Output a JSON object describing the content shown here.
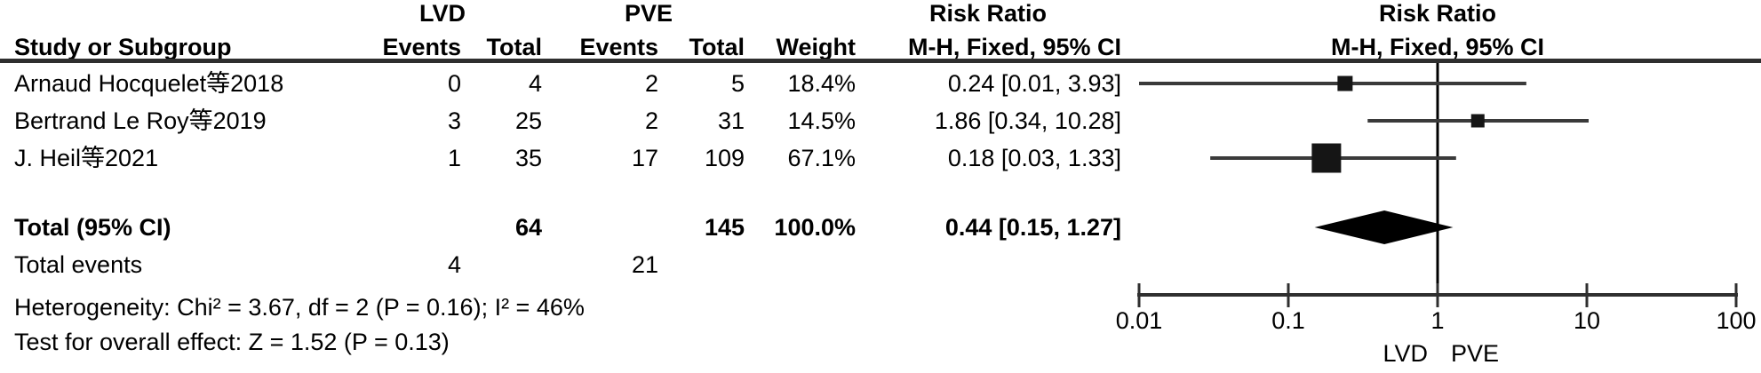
{
  "table": {
    "group1_label": "LVD",
    "group2_label": "PVE",
    "col_study": "Study or Subgroup",
    "col_events": "Events",
    "col_total": "Total",
    "col_weight": "Weight",
    "rr_header_line1": "Risk Ratio",
    "rr_header_line2": "M-H, Fixed, 95% CI",
    "plot_header_line1": "Risk Ratio",
    "plot_header_line2": "M-H, Fixed, 95% CI",
    "studies": [
      {
        "name": "Arnaud Hocquelet等2018",
        "lvd_events": "0",
        "lvd_total": "4",
        "pve_events": "2",
        "pve_total": "5",
        "weight": "18.4%",
        "rr_ci": "0.24 [0.01, 3.93]"
      },
      {
        "name": "Bertrand Le Roy等2019",
        "lvd_events": "3",
        "lvd_total": "25",
        "pve_events": "2",
        "pve_total": "31",
        "weight": "14.5%",
        "rr_ci": "1.86 [0.34, 10.28]"
      },
      {
        "name": "J. Heil等2021",
        "lvd_events": "1",
        "lvd_total": "35",
        "pve_events": "17",
        "pve_total": "109",
        "weight": "67.1%",
        "rr_ci": "0.18 [0.03, 1.33]"
      }
    ],
    "total": {
      "label": "Total (95% CI)",
      "lvd_total": "64",
      "pve_total": "145",
      "weight": "100.0%",
      "rr_ci": "0.44 [0.15, 1.27]"
    },
    "total_events": {
      "label": "Total events",
      "lvd": "4",
      "pve": "21"
    },
    "heterogeneity": "Heterogeneity: Chi² = 3.67, df = 2 (P = 0.16); I² = 46%",
    "overall_effect": "Test for overall effect: Z = 1.52 (P = 0.13)"
  },
  "chart_data": {
    "type": "forest",
    "title": "Risk Ratio",
    "method": "M-H, Fixed, 95% CI",
    "x_scale": "log",
    "x_ticks": [
      "0.01",
      "0.1",
      "1",
      "10",
      "100"
    ],
    "x_tick_values": [
      0.01,
      0.1,
      1,
      10,
      100
    ],
    "null_value": 1,
    "favours_left_label": "LVD",
    "favours_right_label": "PVE",
    "studies": [
      {
        "name": "Arnaud Hocquelet等2018",
        "rr": 0.24,
        "ci_low": 0.01,
        "ci_high": 3.93,
        "weight": 18.4
      },
      {
        "name": "Bertrand Le Roy等2019",
        "rr": 1.86,
        "ci_low": 0.34,
        "ci_high": 10.28,
        "weight": 14.5
      },
      {
        "name": "J. Heil等2021",
        "rr": 0.18,
        "ci_low": 0.03,
        "ci_high": 1.33,
        "weight": 67.1
      }
    ],
    "total": {
      "rr": 0.44,
      "ci_low": 0.15,
      "ci_high": 1.27
    }
  },
  "colors": {
    "text": "#000000",
    "ci_line": "#3a3a3a",
    "marker": "#151515",
    "axis": "#2f2f2f",
    "null_line": "#000000",
    "header_rule": "#2f2f2f"
  }
}
